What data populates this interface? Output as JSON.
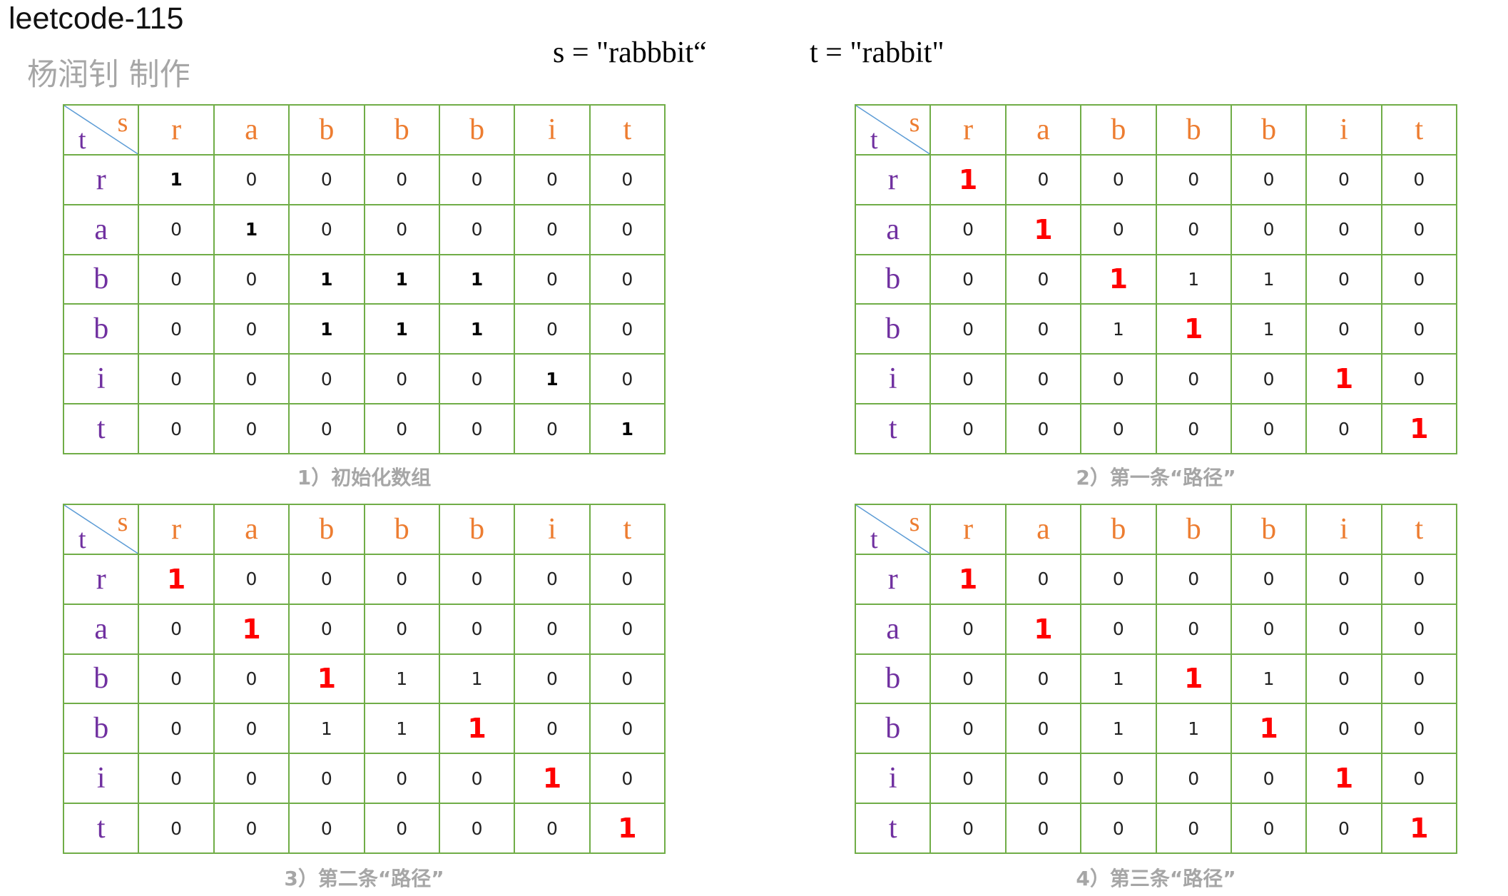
{
  "header": {
    "title": "leetcode-115",
    "author": "杨润钊 制作",
    "s_string": "s = \"rabbbit“",
    "t_string": "t = \"rabbit\""
  },
  "labels": {
    "s": "s",
    "t": "t"
  },
  "s_chars": [
    "r",
    "a",
    "b",
    "b",
    "b",
    "i",
    "t"
  ],
  "t_chars": [
    "r",
    "a",
    "b",
    "b",
    "i",
    "t"
  ],
  "colors": {
    "grid_line": "#70ad47",
    "s_header": "#ed7d31",
    "t_header": "#7030a0",
    "highlight": "#ff0000",
    "caption": "#a6a6a6",
    "diagonal": "#5b9bd5"
  },
  "tables": [
    {
      "caption": "1）初始化数组",
      "values": [
        [
          1,
          0,
          0,
          0,
          0,
          0,
          0
        ],
        [
          0,
          1,
          0,
          0,
          0,
          0,
          0
        ],
        [
          0,
          0,
          1,
          1,
          1,
          0,
          0
        ],
        [
          0,
          0,
          1,
          1,
          1,
          0,
          0
        ],
        [
          0,
          0,
          0,
          0,
          0,
          1,
          0
        ],
        [
          0,
          0,
          0,
          0,
          0,
          0,
          1
        ]
      ],
      "highlight_style": "bold",
      "highlight": [
        [
          0,
          0
        ],
        [
          1,
          1
        ],
        [
          2,
          2
        ],
        [
          2,
          3
        ],
        [
          2,
          4
        ],
        [
          3,
          2
        ],
        [
          3,
          3
        ],
        [
          3,
          4
        ],
        [
          4,
          5
        ],
        [
          5,
          6
        ]
      ]
    },
    {
      "caption": "2）第一条“路径”",
      "values": [
        [
          1,
          0,
          0,
          0,
          0,
          0,
          0
        ],
        [
          0,
          1,
          0,
          0,
          0,
          0,
          0
        ],
        [
          0,
          0,
          1,
          1,
          1,
          0,
          0
        ],
        [
          0,
          0,
          1,
          1,
          1,
          0,
          0
        ],
        [
          0,
          0,
          0,
          0,
          0,
          1,
          0
        ],
        [
          0,
          0,
          0,
          0,
          0,
          0,
          1
        ]
      ],
      "highlight_style": "red",
      "highlight": [
        [
          0,
          0
        ],
        [
          1,
          1
        ],
        [
          2,
          2
        ],
        [
          3,
          3
        ],
        [
          4,
          5
        ],
        [
          5,
          6
        ]
      ]
    },
    {
      "caption": "3）第二条“路径”",
      "values": [
        [
          1,
          0,
          0,
          0,
          0,
          0,
          0
        ],
        [
          0,
          1,
          0,
          0,
          0,
          0,
          0
        ],
        [
          0,
          0,
          1,
          1,
          1,
          0,
          0
        ],
        [
          0,
          0,
          1,
          1,
          1,
          0,
          0
        ],
        [
          0,
          0,
          0,
          0,
          0,
          1,
          0
        ],
        [
          0,
          0,
          0,
          0,
          0,
          0,
          1
        ]
      ],
      "highlight_style": "red",
      "highlight": [
        [
          0,
          0
        ],
        [
          1,
          1
        ],
        [
          2,
          2
        ],
        [
          3,
          4
        ],
        [
          4,
          5
        ],
        [
          5,
          6
        ]
      ]
    },
    {
      "caption": "4）第三条“路径”",
      "values": [
        [
          1,
          0,
          0,
          0,
          0,
          0,
          0
        ],
        [
          0,
          1,
          0,
          0,
          0,
          0,
          0
        ],
        [
          0,
          0,
          1,
          1,
          1,
          0,
          0
        ],
        [
          0,
          0,
          1,
          1,
          1,
          0,
          0
        ],
        [
          0,
          0,
          0,
          0,
          0,
          1,
          0
        ],
        [
          0,
          0,
          0,
          0,
          0,
          0,
          1
        ]
      ],
      "highlight_style": "red",
      "highlight": [
        [
          0,
          0
        ],
        [
          1,
          1
        ],
        [
          2,
          3
        ],
        [
          3,
          4
        ],
        [
          4,
          5
        ],
        [
          5,
          6
        ]
      ]
    }
  ]
}
